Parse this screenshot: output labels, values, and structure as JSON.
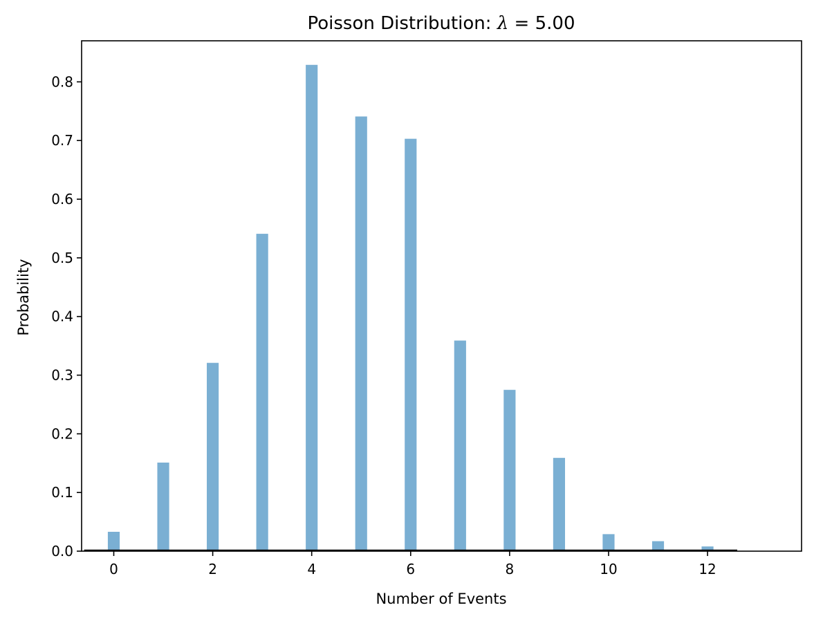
{
  "chart_data": {
    "type": "bar",
    "title_prefix": "Poisson Distribution: ",
    "title_symbol": "λ",
    "title_suffix": " = 5.00",
    "xlabel": "Number of Events",
    "ylabel": "Probability",
    "categories": [
      0,
      1,
      2,
      3,
      4,
      5,
      6,
      7,
      8,
      9,
      10,
      11,
      12
    ],
    "values": [
      0.033,
      0.151,
      0.321,
      0.541,
      0.829,
      0.741,
      0.703,
      0.359,
      0.275,
      0.159,
      0.029,
      0.017,
      0.008
    ],
    "xlim": [
      -0.65,
      13.9
    ],
    "ylim": [
      0,
      0.87
    ],
    "xticks": [
      0,
      2,
      4,
      6,
      8,
      10,
      12
    ],
    "yticks": [
      0.0,
      0.1,
      0.2,
      0.3,
      0.4,
      0.5,
      0.6,
      0.7,
      0.8
    ],
    "bar_color": "#7aafd3",
    "baseline_range": [
      -0.6,
      12.6
    ],
    "grid": false
  }
}
